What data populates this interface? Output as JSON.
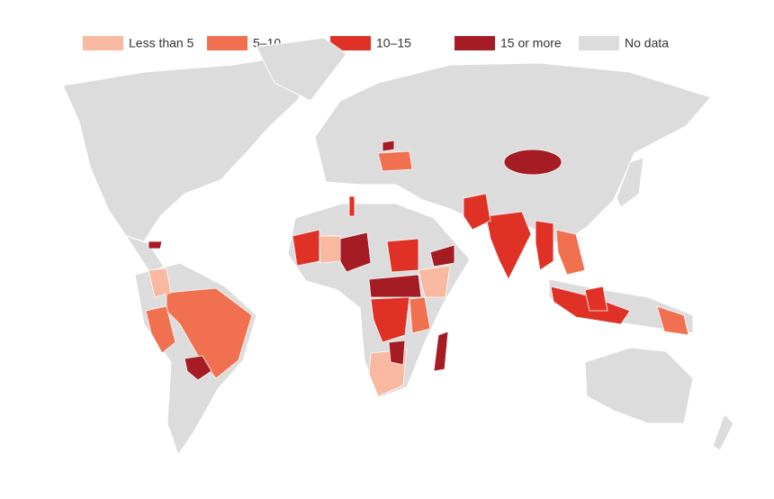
{
  "legend": [
    {
      "label": "Less than 5",
      "color": "#f9b9a0"
    },
    {
      "label": "5–10",
      "color": "#f07050"
    },
    {
      "label": "10–15",
      "color": "#e03127"
    },
    {
      "label": "15 or more",
      "color": "#a51c24"
    },
    {
      "label": "No data",
      "color": "#dcdcdd"
    }
  ]
}
